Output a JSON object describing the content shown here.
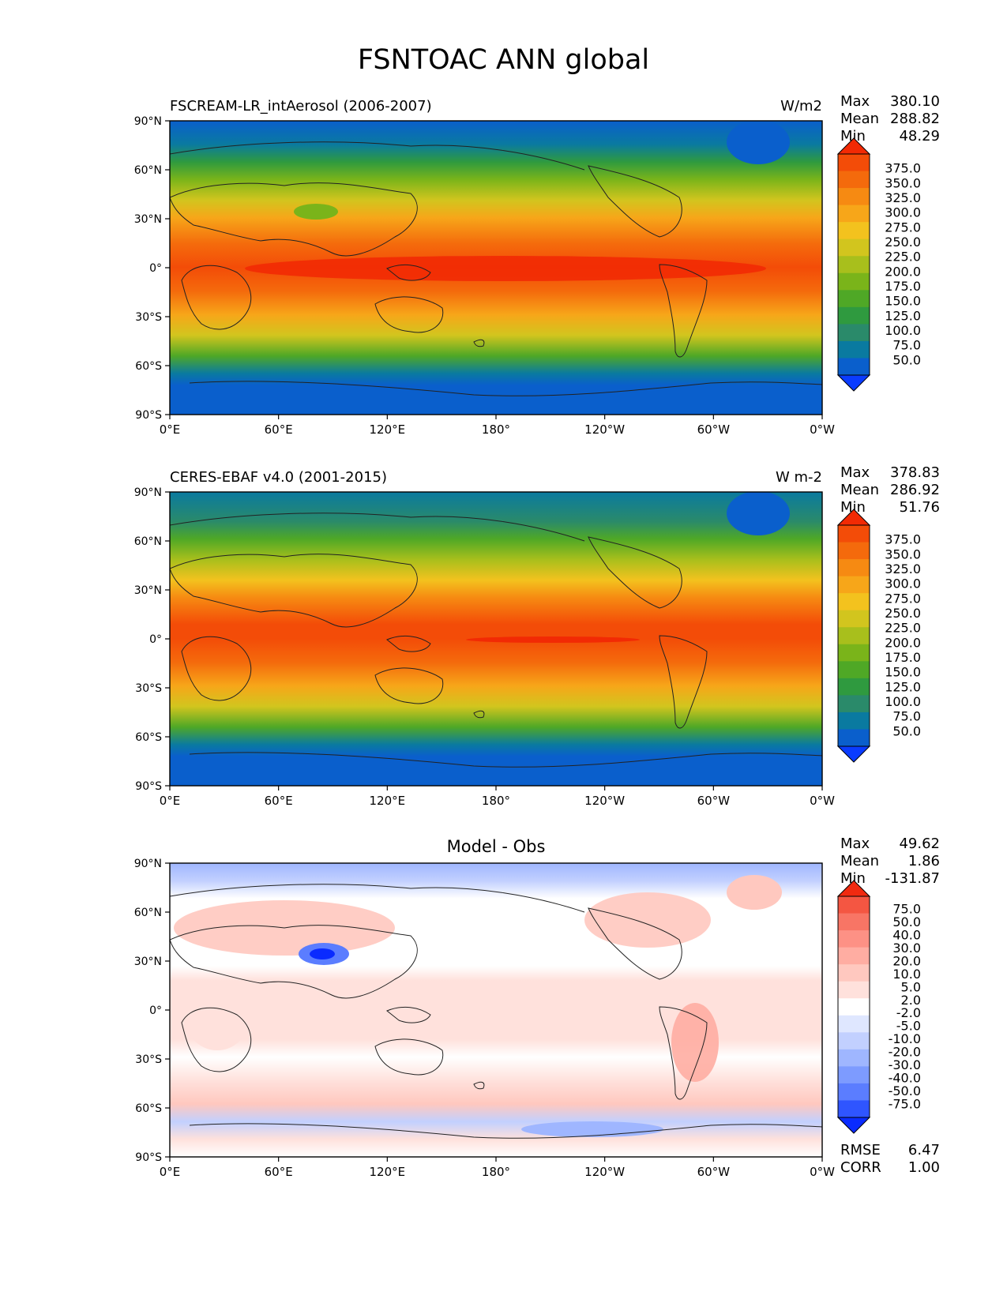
{
  "title": "FSNTOAC ANN global",
  "x_ticks": [
    "0°E",
    "60°E",
    "120°E",
    "180°",
    "120°W",
    "60°W",
    "0°W"
  ],
  "y_ticks": [
    "90°N",
    "60°N",
    "30°N",
    "0°",
    "30°S",
    "60°S",
    "90°S"
  ],
  "colors": {
    "abs_palette": [
      "#0a3cff",
      "#0a5fcc",
      "#0a7aa0",
      "#2a8a6a",
      "#2f9a3f",
      "#4fa826",
      "#7ab41a",
      "#a8bf1c",
      "#d2c51e",
      "#f3c21e",
      "#f7a619",
      "#f68a12",
      "#f46a0c",
      "#f34c08",
      "#f22a04"
    ],
    "diff_palette": [
      "#0a2bff",
      "#2f55ff",
      "#5b7dff",
      "#7d9bff",
      "#9fb6ff",
      "#c2d0ff",
      "#dfe7ff",
      "#ffffff",
      "#ffe1dc",
      "#ffc8bf",
      "#ffada2",
      "#fd9185",
      "#f87565",
      "#f45642",
      "#f02a10"
    ]
  },
  "panels": [
    {
      "name": "model",
      "label": "FSCREAM-LR_intAerosol (2006-2007)",
      "units": "W/m2",
      "center_title": "",
      "stats": {
        "max_label": "Max",
        "max": "380.10",
        "mean_label": "Mean",
        "mean": "288.82",
        "min_label": "Min",
        "min": "48.29"
      },
      "colorbar": {
        "palette": "abs",
        "levels": [
          "375.0",
          "350.0",
          "325.0",
          "300.0",
          "275.0",
          "250.0",
          "225.0",
          "200.0",
          "175.0",
          "150.0",
          "125.0",
          "100.0",
          "75.0",
          "50.0"
        ]
      }
    },
    {
      "name": "obs",
      "label": "CERES-EBAF v4.0 (2001-2015)",
      "units": "W m-2",
      "center_title": "",
      "stats": {
        "max_label": "Max",
        "max": "378.83",
        "mean_label": "Mean",
        "mean": "286.92",
        "min_label": "Min",
        "min": "51.76"
      },
      "colorbar": {
        "palette": "abs",
        "levels": [
          "375.0",
          "350.0",
          "325.0",
          "300.0",
          "275.0",
          "250.0",
          "225.0",
          "200.0",
          "175.0",
          "150.0",
          "125.0",
          "100.0",
          "75.0",
          "50.0"
        ]
      }
    },
    {
      "name": "diff",
      "label": "",
      "units": "",
      "center_title": "Model - Obs",
      "stats": {
        "max_label": "Max",
        "max": "49.62",
        "mean_label": "Mean",
        "mean": "1.86",
        "min_label": "Min",
        "min": "-131.87"
      },
      "colorbar": {
        "palette": "diff",
        "levels": [
          "75.0",
          "50.0",
          "40.0",
          "30.0",
          "20.0",
          "10.0",
          "5.0",
          "2.0",
          "-2.0",
          "-5.0",
          "-10.0",
          "-20.0",
          "-30.0",
          "-40.0",
          "-50.0",
          "-75.0"
        ]
      },
      "extra_stats": {
        "rmse_label": "RMSE",
        "rmse": "6.47",
        "corr_label": "CORR",
        "corr": "1.00"
      }
    }
  ]
}
